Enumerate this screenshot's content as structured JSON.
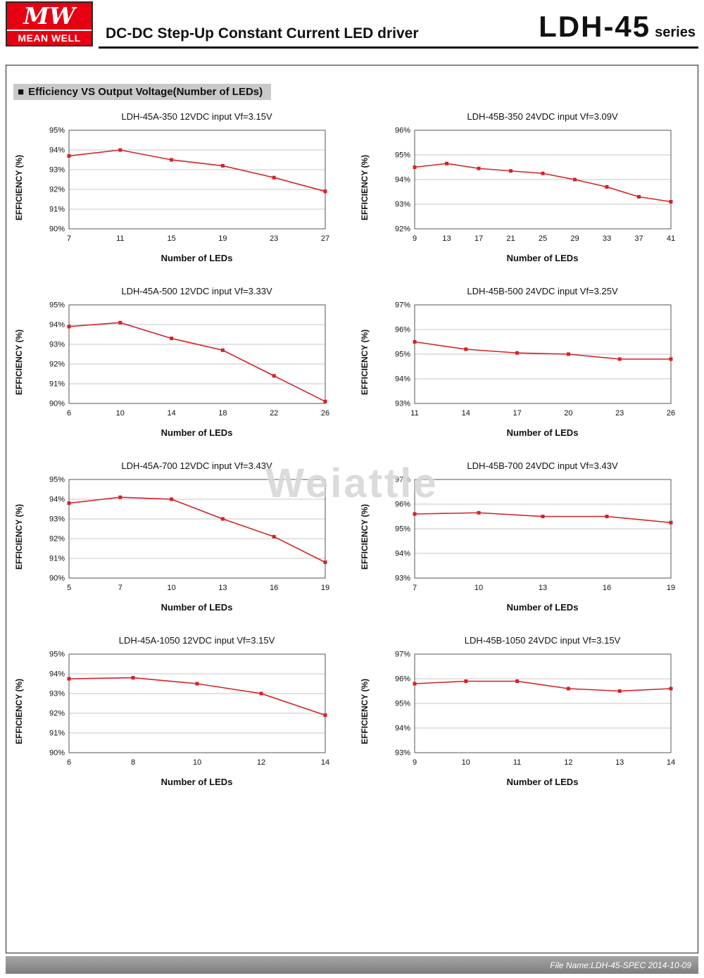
{
  "header": {
    "logo": {
      "mw": "MW",
      "brand": "MEAN WELL"
    },
    "subtitle": "DC-DC Step-Up Constant Current LED driver",
    "series_name": "LDH-45",
    "series_suffix": "series"
  },
  "section": {
    "bullet": "■",
    "title": "Efficiency VS Output Voltage(Number of LEDs)"
  },
  "watermark": "Weiattle",
  "footer": {
    "file_info": "File Name:LDH-45-SPEC  2014-10-09"
  },
  "colors": {
    "line_red": "#d42227",
    "logo_red": "#e60012",
    "grid_gray": "#909090",
    "plot_border": "#555555",
    "section_bg": "#c9c9c9",
    "footer_gray": "#8e8e8e"
  },
  "axis": {
    "y_label": "EFFICIENCY (%)",
    "x_label": "Number of LEDs"
  },
  "chart_data": [
    {
      "type": "line",
      "title": "LDH-45A-350 12VDC input Vf=3.15V",
      "xlabel": "Number of LEDs",
      "ylabel": "EFFICIENCY (%)",
      "categories": [
        7,
        11,
        15,
        19,
        23,
        27
      ],
      "values": [
        93.7,
        94.0,
        93.5,
        93.2,
        92.6,
        91.9
      ],
      "ylim": [
        90,
        95
      ],
      "ytick_step": 1,
      "ytick_suffix": "%",
      "grid": "horizontal",
      "legend": "none"
    },
    {
      "type": "line",
      "title": "LDH-45B-350 24VDC input Vf=3.09V",
      "xlabel": "Number of LEDs",
      "ylabel": "EFFICIENCY (%)",
      "categories": [
        9,
        13,
        17,
        21,
        25,
        29,
        33,
        37,
        41
      ],
      "values": [
        94.5,
        94.65,
        94.45,
        94.35,
        94.25,
        94.0,
        93.7,
        93.3,
        93.1
      ],
      "ylim": [
        92,
        96
      ],
      "ytick_step": 1,
      "ytick_suffix": "%",
      "grid": "horizontal",
      "legend": "none"
    },
    {
      "type": "line",
      "title": "LDH-45A-500 12VDC input Vf=3.33V",
      "xlabel": "Number of LEDs",
      "ylabel": "EFFICIENCY (%)",
      "categories": [
        6,
        10,
        14,
        18,
        22,
        26
      ],
      "values": [
        93.9,
        94.1,
        93.3,
        92.7,
        91.4,
        90.1
      ],
      "ylim": [
        90,
        95
      ],
      "ytick_step": 1,
      "ytick_suffix": "%",
      "grid": "horizontal",
      "legend": "none"
    },
    {
      "type": "line",
      "title": "LDH-45B-500 24VDC input Vf=3.25V",
      "xlabel": "Number of LEDs",
      "ylabel": "EFFICIENCY (%)",
      "categories": [
        11,
        14,
        17,
        20,
        23,
        26
      ],
      "values": [
        95.5,
        95.2,
        95.05,
        95.0,
        94.8,
        94.8
      ],
      "ylim": [
        93,
        97
      ],
      "ytick_step": 1,
      "ytick_suffix": "%",
      "grid": "horizontal",
      "legend": "none"
    },
    {
      "type": "line",
      "title": "LDH-45A-700 12VDC input Vf=3.43V",
      "xlabel": "Number of LEDs",
      "ylabel": "EFFICIENCY (%)",
      "categories": [
        5,
        7,
        10,
        13,
        16,
        19
      ],
      "values": [
        93.8,
        94.1,
        94.0,
        93.0,
        92.1,
        90.8
      ],
      "ylim": [
        90,
        95
      ],
      "ytick_step": 1,
      "ytick_suffix": "%",
      "grid": "horizontal",
      "legend": "none"
    },
    {
      "type": "line",
      "title": "LDH-45B-700 24VDC input Vf=3.43V",
      "xlabel": "Number of LEDs",
      "ylabel": "EFFICIENCY (%)",
      "categories": [
        7,
        10,
        13,
        16,
        19
      ],
      "values": [
        95.6,
        95.65,
        95.5,
        95.5,
        95.25
      ],
      "ylim": [
        93,
        97
      ],
      "ytick_step": 1,
      "ytick_suffix": "%",
      "grid": "horizontal",
      "legend": "none"
    },
    {
      "type": "line",
      "title": "LDH-45A-1050 12VDC input Vf=3.15V",
      "xlabel": "Number of LEDs",
      "ylabel": "EFFICIENCY (%)",
      "categories": [
        6,
        8,
        10,
        12,
        14
      ],
      "values": [
        93.75,
        93.8,
        93.5,
        93.0,
        91.9
      ],
      "ylim": [
        90,
        95
      ],
      "ytick_step": 1,
      "ytick_suffix": "%",
      "grid": "horizontal",
      "legend": "none"
    },
    {
      "type": "line",
      "title": "LDH-45B-1050 24VDC input Vf=3.15V",
      "xlabel": "Number of LEDs",
      "ylabel": "EFFICIENCY (%)",
      "categories": [
        9,
        10,
        11,
        12,
        13,
        14
      ],
      "values": [
        95.8,
        95.9,
        95.9,
        95.6,
        95.5,
        95.6
      ],
      "ylim": [
        93,
        97
      ],
      "ytick_step": 1,
      "ytick_suffix": "%",
      "grid": "horizontal",
      "legend": "none"
    }
  ]
}
